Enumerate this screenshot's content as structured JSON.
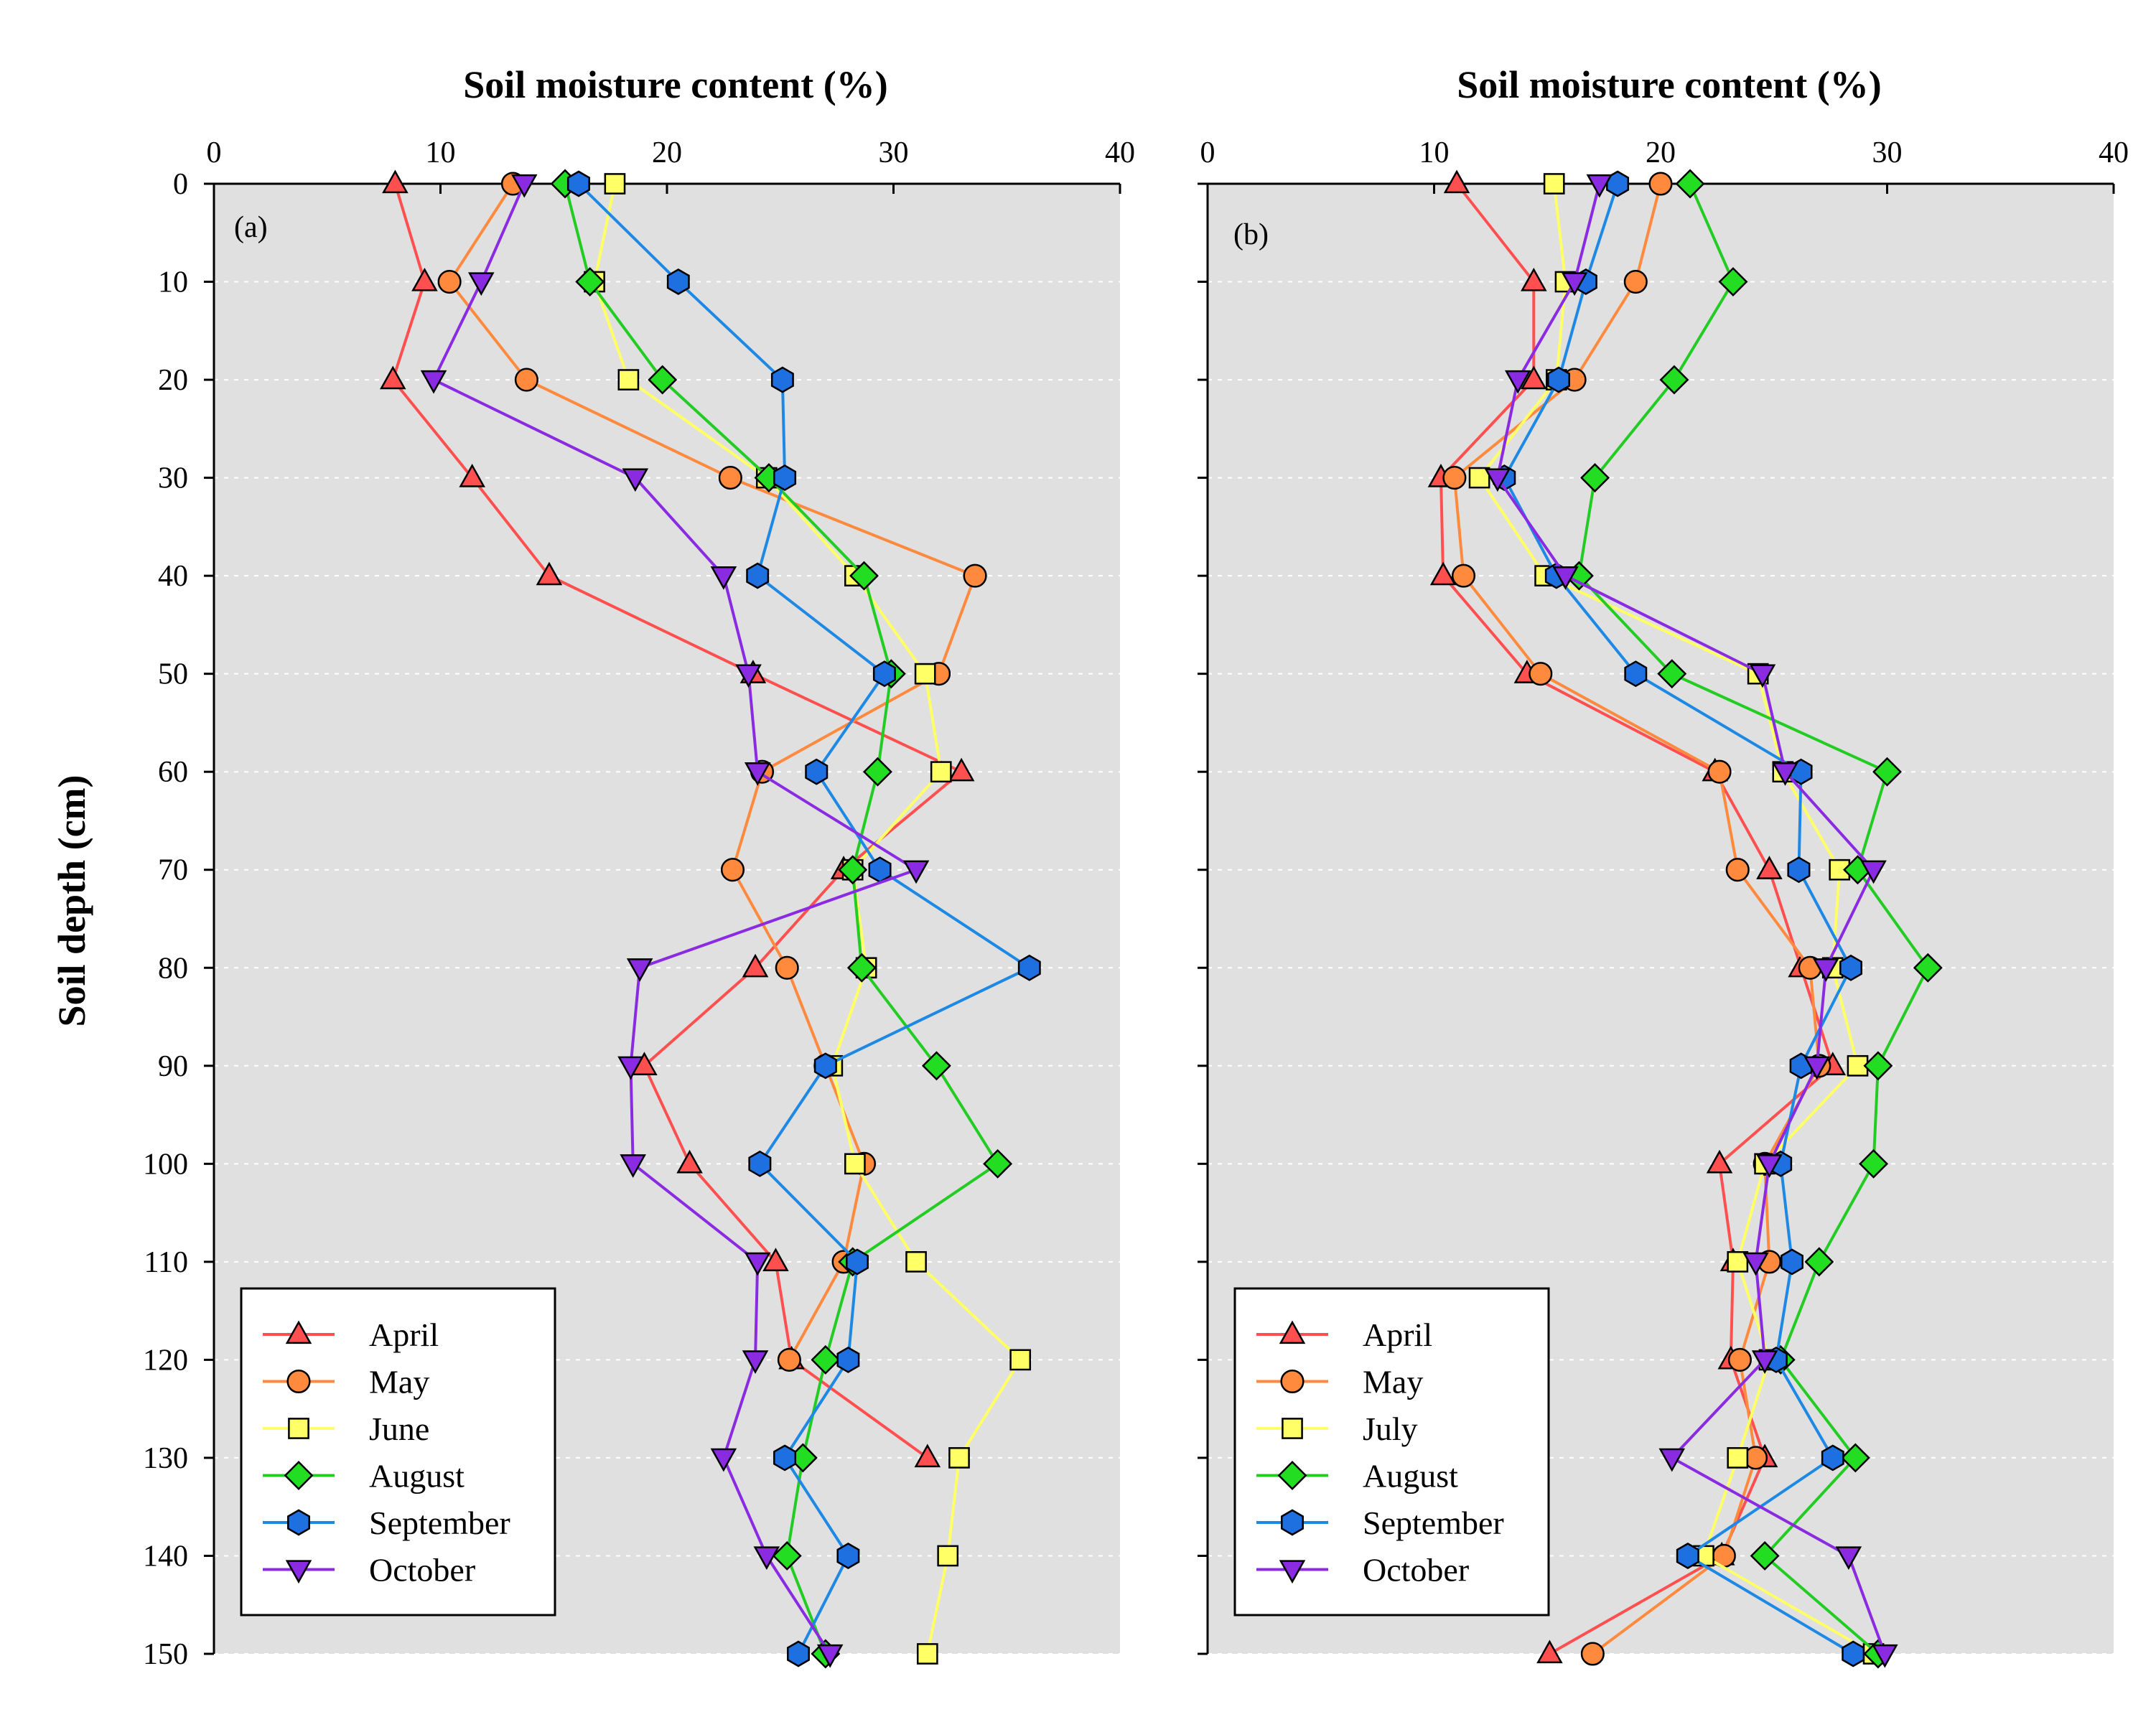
{
  "y_axis_title": "Soil depth (cm)",
  "series_colors": {
    "April": "#ff4f4f",
    "May": "#ff8a3d",
    "June": "#ffff66",
    "July": "#ffff66",
    "August": "#22cc22",
    "September": "#1e88e5",
    "October": "#8a2be2"
  },
  "marker_fill": {
    "April": "#ff4f4f",
    "May": "#ff8a3d",
    "June": "#ffff66",
    "July": "#ffff66",
    "August": "#22dd22",
    "September": "#1e6fe0",
    "October": "#8a2be2"
  },
  "chart_data": [
    {
      "type": "line",
      "panel_label": "(a)",
      "xlabel": "Soil moisture content (%)",
      "ylabel": "Soil depth (cm)",
      "xlim": [
        0,
        40
      ],
      "ylim": [
        0,
        150
      ],
      "x_ticks": [
        0,
        10,
        20,
        30,
        40
      ],
      "y_ticks": [
        0,
        10,
        20,
        30,
        40,
        50,
        60,
        70,
        80,
        90,
        100,
        110,
        120,
        130,
        140,
        150
      ],
      "y_inverted": true,
      "x_axis_position": "top",
      "grid": "horizontal dotted",
      "background": "#e0e0e0",
      "legend_position": "bottom-left",
      "depths": [
        0,
        10,
        20,
        30,
        40,
        50,
        60,
        70,
        80,
        90,
        100,
        110,
        120,
        130,
        140,
        150
      ],
      "series": [
        {
          "name": "April",
          "marker": "triangle-up",
          "values": [
            8.0,
            9.3,
            7.9,
            11.4,
            14.8,
            23.8,
            33.0,
            27.8,
            23.9,
            19.0,
            21.0,
            24.8,
            25.5,
            31.5,
            null,
            null
          ]
        },
        {
          "name": "May",
          "marker": "circle",
          "values": [
            13.2,
            10.4,
            13.8,
            22.8,
            33.6,
            32.0,
            24.2,
            22.9,
            25.3,
            27.0,
            28.7,
            27.8,
            25.4,
            null,
            null,
            null
          ]
        },
        {
          "name": "June",
          "marker": "square",
          "values": [
            17.7,
            16.8,
            18.3,
            24.4,
            28.3,
            31.4,
            32.1,
            28.2,
            28.8,
            27.3,
            28.3,
            31.0,
            35.6,
            32.9,
            32.4,
            31.5
          ]
        },
        {
          "name": "August",
          "marker": "diamond",
          "values": [
            15.5,
            16.6,
            19.8,
            24.5,
            28.7,
            29.9,
            29.3,
            28.2,
            28.6,
            31.9,
            34.6,
            28.2,
            27.0,
            26.0,
            25.3,
            27.0
          ]
        },
        {
          "name": "September",
          "marker": "hexagon",
          "values": [
            16.1,
            20.5,
            25.1,
            25.2,
            24.0,
            29.6,
            26.6,
            29.4,
            36.0,
            27.0,
            24.1,
            28.4,
            28.0,
            25.2,
            28.0,
            25.8
          ]
        },
        {
          "name": "October",
          "marker": "triangle-down",
          "values": [
            13.7,
            11.8,
            9.7,
            18.6,
            22.5,
            23.6,
            24.0,
            31.0,
            18.8,
            18.4,
            18.5,
            24.0,
            23.9,
            22.5,
            24.4,
            27.2
          ]
        }
      ]
    },
    {
      "type": "line",
      "panel_label": "(b)",
      "xlabel": "Soil moisture content (%)",
      "ylabel": "",
      "xlim": [
        0,
        40
      ],
      "ylim": [
        0,
        150
      ],
      "x_ticks": [
        0,
        10,
        20,
        30,
        40
      ],
      "y_ticks": [
        0,
        10,
        20,
        30,
        40,
        50,
        60,
        70,
        80,
        90,
        100,
        110,
        120,
        130,
        140,
        150
      ],
      "y_tick_labels_shown": false,
      "y_inverted": true,
      "x_axis_position": "top",
      "grid": "horizontal dotted",
      "background": "#e0e0e0",
      "legend_position": "bottom-left",
      "depths": [
        0,
        10,
        20,
        30,
        40,
        50,
        60,
        70,
        80,
        90,
        100,
        110,
        120,
        130,
        140,
        150
      ],
      "series": [
        {
          "name": "April",
          "marker": "triangle-up",
          "values": [
            11.0,
            14.4,
            14.4,
            10.3,
            10.4,
            14.1,
            22.4,
            24.8,
            26.2,
            27.6,
            22.6,
            23.2,
            23.1,
            24.6,
            22.7,
            15.1
          ]
        },
        {
          "name": "May",
          "marker": "circle",
          "values": [
            20.0,
            18.9,
            16.2,
            10.9,
            11.3,
            14.7,
            22.6,
            23.4,
            26.6,
            27.0,
            24.6,
            24.8,
            23.5,
            24.2,
            22.8,
            17.0
          ]
        },
        {
          "name": "July",
          "marker": "square",
          "values": [
            15.3,
            15.8,
            15.4,
            12.0,
            14.9,
            24.3,
            25.4,
            27.9,
            27.6,
            28.7,
            24.6,
            23.4,
            24.8,
            23.4,
            21.9,
            29.4
          ]
        },
        {
          "name": "August",
          "marker": "diamond",
          "values": [
            21.3,
            23.2,
            20.6,
            17.1,
            16.4,
            20.5,
            30.0,
            28.7,
            31.8,
            29.6,
            29.4,
            27.0,
            25.3,
            28.6,
            24.6,
            29.6
          ]
        },
        {
          "name": "September",
          "marker": "hexagon",
          "values": [
            18.1,
            16.7,
            15.5,
            13.1,
            15.4,
            18.9,
            26.2,
            26.1,
            28.4,
            26.2,
            25.3,
            25.8,
            25.1,
            27.6,
            21.2,
            28.5
          ]
        },
        {
          "name": "October",
          "marker": "triangle-down",
          "values": [
            17.3,
            16.2,
            13.7,
            12.8,
            15.8,
            24.5,
            25.5,
            29.4,
            27.3,
            26.9,
            24.8,
            24.2,
            24.6,
            20.5,
            28.3,
            29.9
          ]
        }
      ]
    }
  ]
}
